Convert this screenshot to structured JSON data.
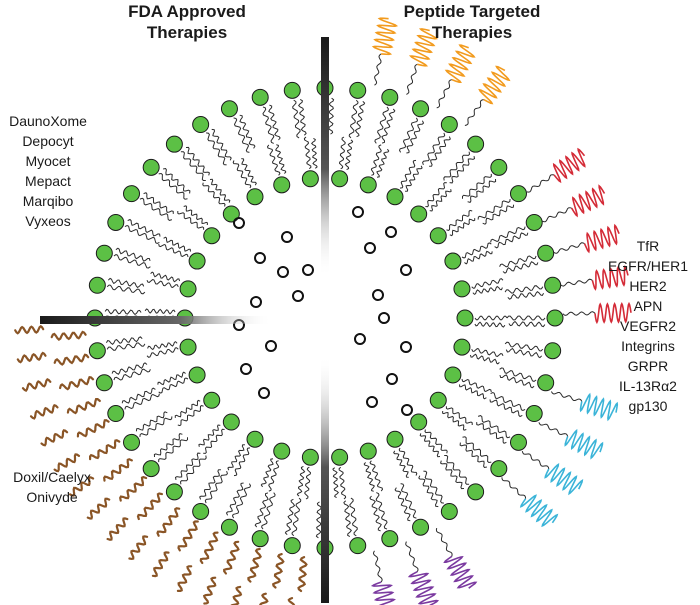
{
  "headers": {
    "left_line1": "FDA Approved",
    "left_line2": "Therapies",
    "right_line1": "Peptide Targeted",
    "right_line2": "Therapies"
  },
  "fda_approved_list": [
    "DaunoXome",
    "Depocyt",
    "Myocet",
    "Mepact",
    "Marqibo",
    "Vyxeos"
  ],
  "pegylated_list": [
    "Doxil/Caelyx",
    "Onivyde"
  ],
  "peptide_targets": [
    "TfR",
    "EGFR/HER1",
    "HER2",
    "APN",
    "VEGFR2",
    "Integrins",
    "GRPR",
    "IL-13Rα2",
    "gp130"
  ],
  "colors": {
    "headgroup": "#5cc045",
    "headgroup_stroke": "#1b1b1b",
    "tail": "#2b2b2b",
    "divider": "#1a1a1a",
    "peg_chain": "#8a5526",
    "peptide_orange": "#f29b1e",
    "peptide_red": "#d42b37",
    "peptide_cyan": "#3bb4d8",
    "peptide_purple": "#7b3aa0",
    "drug_ring": "#111111"
  }
}
